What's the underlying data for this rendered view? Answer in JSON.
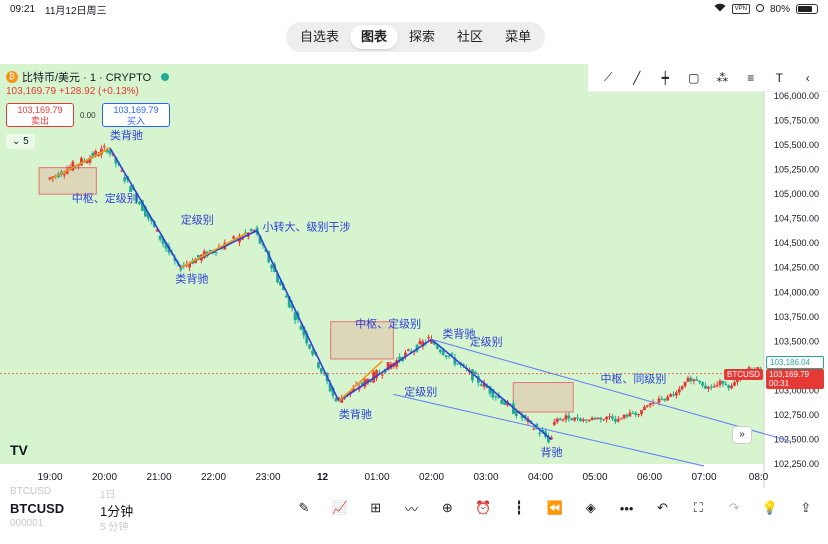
{
  "status_bar": {
    "time": "09:21",
    "date": "11月12日周三",
    "vpn": "VPN",
    "battery": "80%"
  },
  "top_tabs": [
    {
      "label": "自选表",
      "active": false
    },
    {
      "label": "图表",
      "active": true
    },
    {
      "label": "探索",
      "active": false
    },
    {
      "label": "社区",
      "active": false
    },
    {
      "label": "菜单",
      "active": false
    }
  ],
  "chart_header": {
    "symbol_title": "比特币/美元 · 1 · CRYPTO",
    "change": "103,169.79 +128.92 (+0.13%)",
    "sell_price": "103,169.79",
    "sell_label": "卖出",
    "spread": "0.00",
    "buy_price": "103,169.79",
    "buy_label": "买入",
    "collapsed_count": "5"
  },
  "price_tags": {
    "symbol": "BTCUSD",
    "last_price": "103,169.79",
    "countdown": "00:31",
    "high_line": "103,186.04"
  },
  "colors": {
    "background": "#d6f5cf",
    "up": "#e53935",
    "down": "#22ab94",
    "stroke_blue": "#2d3fd8",
    "stroke_orange": "#f39c12"
  },
  "chart_data": {
    "type": "candlestick",
    "price_axis": [
      "106,000.00",
      "105,750.00",
      "105,500.00",
      "105,250.00",
      "105,000.00",
      "104,750.00",
      "104,500.00",
      "104,250.00",
      "104,000.00",
      "103,750.00",
      "103,500.00",
      "103,250.00",
      "103,000.00",
      "102,750.00",
      "102,500.00",
      "102,250.00"
    ],
    "ylim": [
      102250,
      106000
    ],
    "time_axis": [
      "19:00",
      "20:00",
      "21:00",
      "22:00",
      "23:00",
      "12",
      "01:00",
      "02:00",
      "03:00",
      "04:00",
      "05:00",
      "06:00",
      "07:00",
      "08:0"
    ],
    "stroke_path": [
      {
        "t": 19.0,
        "p": 105150
      },
      {
        "t": 20.1,
        "p": 105470
      },
      {
        "t": 21.4,
        "p": 104250
      },
      {
        "t": 22.8,
        "p": 104630
      },
      {
        "t": 24.3,
        "p": 102890
      },
      {
        "t": 26.0,
        "p": 103520
      },
      {
        "t": 28.2,
        "p": 102500
      }
    ],
    "annotations": [
      {
        "text": "类背驰",
        "t": 20.1,
        "p": 105560
      },
      {
        "text": "中枢、定级别",
        "t": 19.4,
        "p": 104920
      },
      {
        "text": "定级别",
        "t": 21.4,
        "p": 104700
      },
      {
        "text": "类背驰",
        "t": 21.3,
        "p": 104100
      },
      {
        "text": "小转大、级别干涉",
        "t": 22.9,
        "p": 104630
      },
      {
        "text": "中枢、定级别",
        "t": 24.6,
        "p": 103640
      },
      {
        "text": "类背驰",
        "t": 26.2,
        "p": 103540
      },
      {
        "text": "定级别",
        "t": 26.7,
        "p": 103460
      },
      {
        "text": "定级别",
        "t": 25.5,
        "p": 102950
      },
      {
        "text": "类背驰",
        "t": 24.3,
        "p": 102720
      },
      {
        "text": "中枢、同级别",
        "t": 29.1,
        "p": 103080
      },
      {
        "text": "背驰",
        "t": 28.0,
        "p": 102330
      }
    ],
    "pivot_boxes": [
      {
        "t0": 18.8,
        "t1": 19.85,
        "p0": 105000,
        "p1": 105270
      },
      {
        "t0": 24.15,
        "t1": 25.3,
        "p0": 103320,
        "p1": 103700
      },
      {
        "t0": 27.5,
        "t1": 28.6,
        "p0": 102780,
        "p1": 103080
      }
    ]
  },
  "bottom_bar": {
    "symbol": "BTCUSD",
    "interval": "1分钟",
    "ghost_symbol": "BTCUSD",
    "ghost_interval": "1日",
    "ghost_code": "000001",
    "ghost_interval2": "5 分钟"
  }
}
